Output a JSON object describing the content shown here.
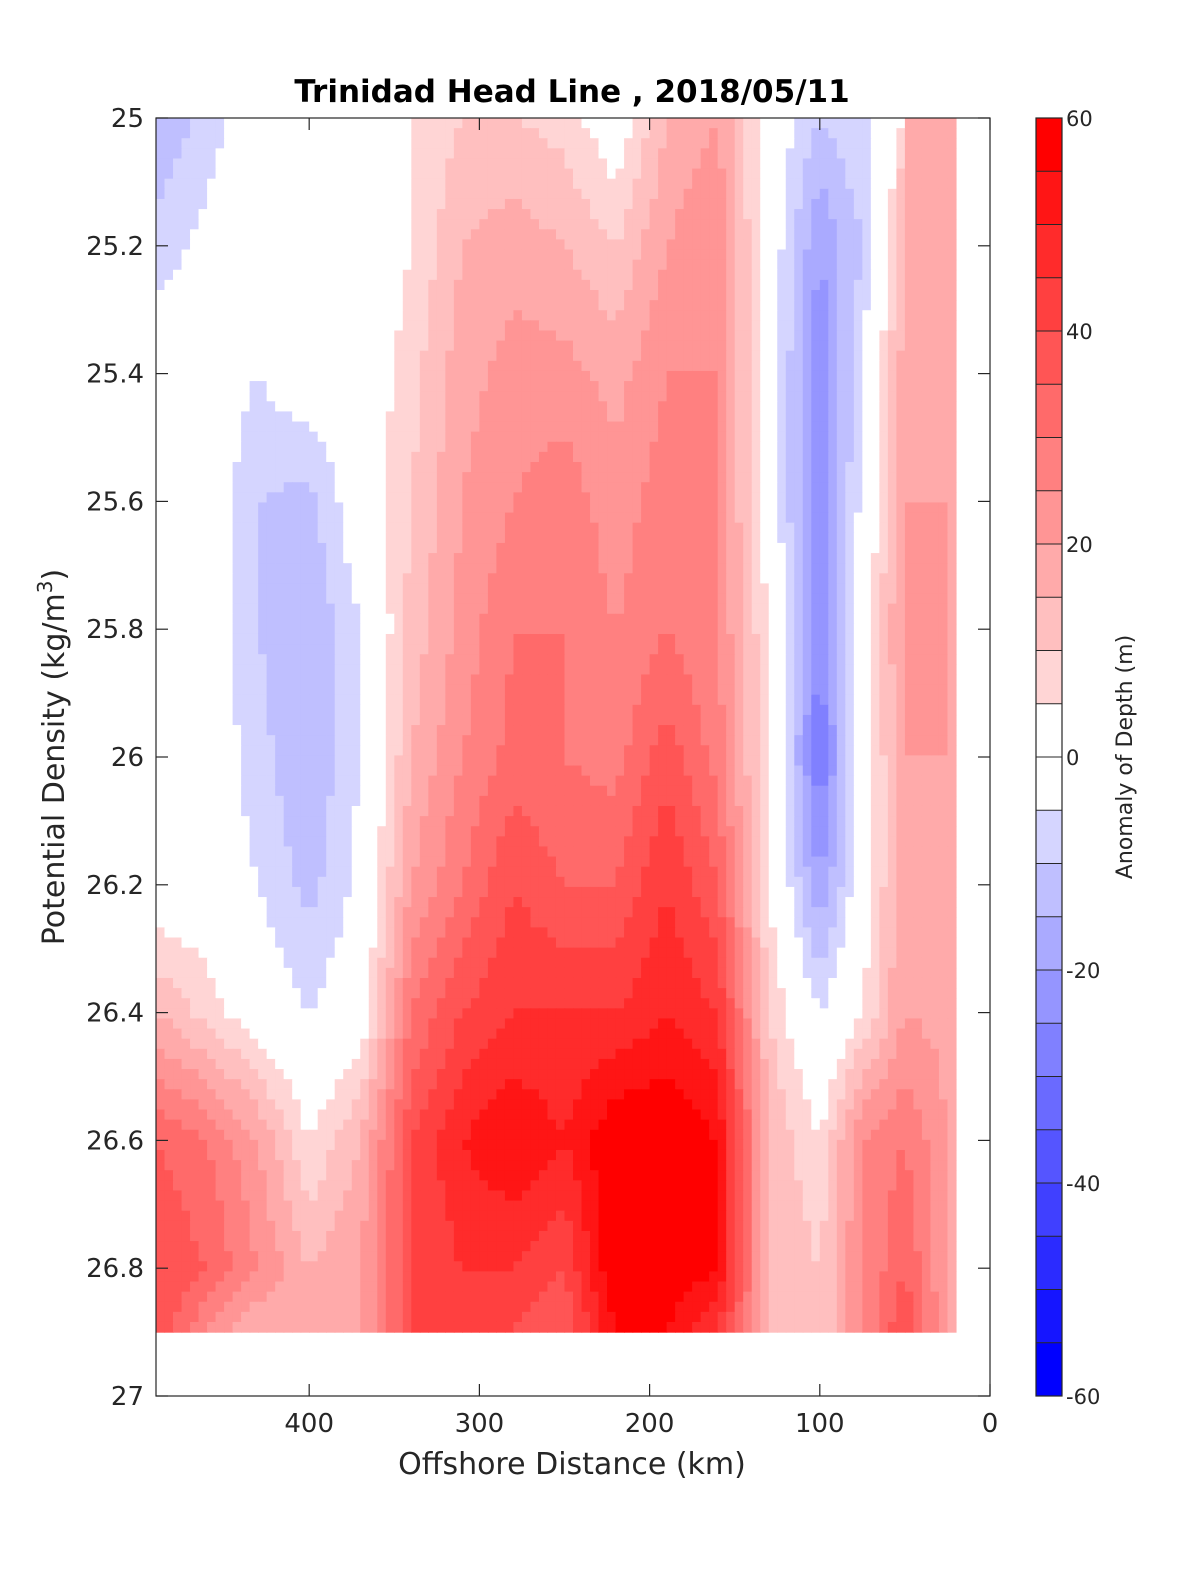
{
  "chart_data": {
    "type": "heatmap",
    "title": "Trinidad Head Line , 2018/05/11",
    "xlabel": "Offshore Distance (km)",
    "ylabel_prefix": "Potential Density (kg/m",
    "ylabel_sup": "3",
    "ylabel_suffix": ")",
    "xlim": [
      490,
      0
    ],
    "ylim": [
      25,
      27
    ],
    "y_reversed": true,
    "x_ticks": [
      400,
      300,
      200,
      100,
      0
    ],
    "x_tick_labels": [
      "400",
      "300",
      "200",
      "100",
      "0"
    ],
    "y_ticks": [
      25,
      25.2,
      25.4,
      25.6,
      25.8,
      26,
      26.2,
      26.4,
      26.6,
      26.8,
      27
    ],
    "y_tick_labels": [
      "25",
      "25.2",
      "25.4",
      "25.6",
      "25.8",
      "26",
      "26.2",
      "26.4",
      "26.6",
      "26.8",
      "27"
    ],
    "colorbar": {
      "label": "Anomaly of Depth (m)",
      "range": [
        -60,
        60
      ],
      "step": 5,
      "ticks": [
        60,
        40,
        20,
        0,
        -20,
        -40,
        -60
      ],
      "tick_labels": [
        "60",
        "40",
        "20",
        "0",
        "-20",
        "-40",
        "-60"
      ],
      "colors": {
        "negative": "#0000ff",
        "zero": "#ffffff",
        "positive": "#ff0000"
      }
    },
    "data_extent": {
      "x_range": [
        490,
        20
      ],
      "density_max": 26.9
    },
    "x": [
      490,
      460,
      430,
      400,
      370,
      340,
      310,
      280,
      250,
      220,
      190,
      160,
      130,
      100,
      75,
      50,
      25
    ],
    "y": [
      25.0,
      25.2,
      25.4,
      25.6,
      25.8,
      26.0,
      26.2,
      26.4,
      26.6,
      26.8,
      26.9
    ],
    "z": [
      [
        -15,
        -8,
        0,
        0,
        -5,
        5,
        10,
        10,
        8,
        0,
        15,
        20,
        0,
        -10,
        -5,
        null,
        null
      ],
      [
        -8,
        -3,
        0,
        0,
        -3,
        5,
        15,
        18,
        15,
        10,
        20,
        25,
        0,
        -20,
        -10,
        15,
        20
      ],
      [
        0,
        0,
        -5,
        0,
        0,
        8,
        18,
        22,
        22,
        18,
        25,
        25,
        0,
        -25,
        -5,
        18,
        20
      ],
      [
        0,
        0,
        -10,
        -12,
        0,
        10,
        20,
        25,
        28,
        22,
        28,
        25,
        0,
        -25,
        -3,
        20,
        20
      ],
      [
        0,
        0,
        -10,
        -15,
        -5,
        12,
        22,
        30,
        30,
        25,
        30,
        25,
        5,
        -25,
        0,
        22,
        20
      ],
      [
        0,
        0,
        -8,
        -15,
        -5,
        15,
        25,
        32,
        30,
        28,
        38,
        28,
        5,
        -30,
        0,
        20,
        20
      ],
      [
        0,
        0,
        -5,
        -12,
        -3,
        20,
        30,
        40,
        35,
        35,
        45,
        35,
        5,
        -20,
        0,
        20,
        18
      ],
      [
        15,
        8,
        0,
        -5,
        0,
        30,
        40,
        45,
        45,
        45,
        50,
        45,
        10,
        -5,
        5,
        20,
        18
      ],
      [
        35,
        30,
        20,
        5,
        15,
        40,
        50,
        55,
        50,
        60,
        60,
        55,
        15,
        5,
        25,
        30,
        20
      ],
      [
        40,
        35,
        25,
        15,
        20,
        40,
        45,
        45,
        40,
        60,
        60,
        55,
        15,
        10,
        25,
        35,
        20
      ],
      [
        40,
        25,
        15,
        15,
        20,
        40,
        45,
        40,
        35,
        55,
        55,
        45,
        15,
        10,
        25,
        40,
        20
      ]
    ]
  }
}
